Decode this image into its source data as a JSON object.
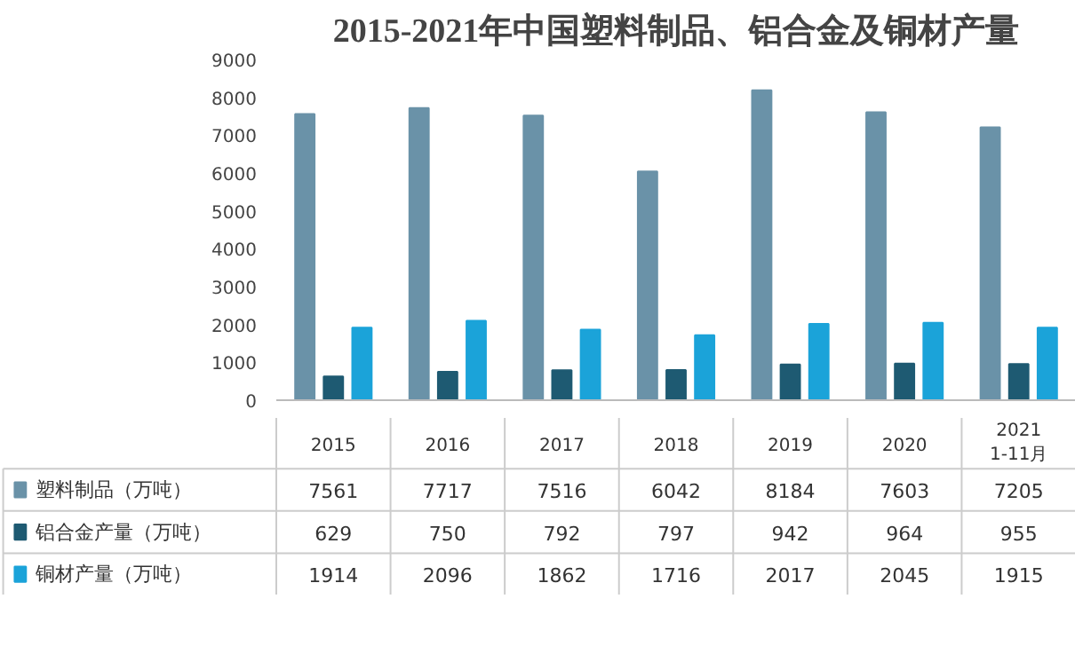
{
  "chart_data": {
    "type": "bar",
    "title": "2015-2021年中国塑料制品、铝合金及铜材产量",
    "categories": [
      "2015",
      "2016",
      "2017",
      "2018",
      "2019",
      "2020",
      "2021\n1-11月"
    ],
    "series": [
      {
        "name": "塑料制品（万吨）",
        "color": "#6a92a8",
        "values": [
          7561,
          7717,
          7516,
          6042,
          8184,
          7603,
          7205
        ]
      },
      {
        "name": "铝合金产量（万吨）",
        "color": "#1e5a72",
        "values": [
          629,
          750,
          792,
          797,
          942,
          964,
          955
        ]
      },
      {
        "name": "铜材产量（万吨）",
        "color": "#1ba3d9",
        "values": [
          1914,
          2096,
          1862,
          1716,
          2017,
          2045,
          1915
        ]
      }
    ],
    "ylim": [
      0,
      9000
    ],
    "yticks": [
      0,
      1000,
      2000,
      3000,
      4000,
      5000,
      6000,
      7000,
      8000,
      9000
    ],
    "grid": false,
    "legend": "bottom",
    "data_labels": true
  }
}
